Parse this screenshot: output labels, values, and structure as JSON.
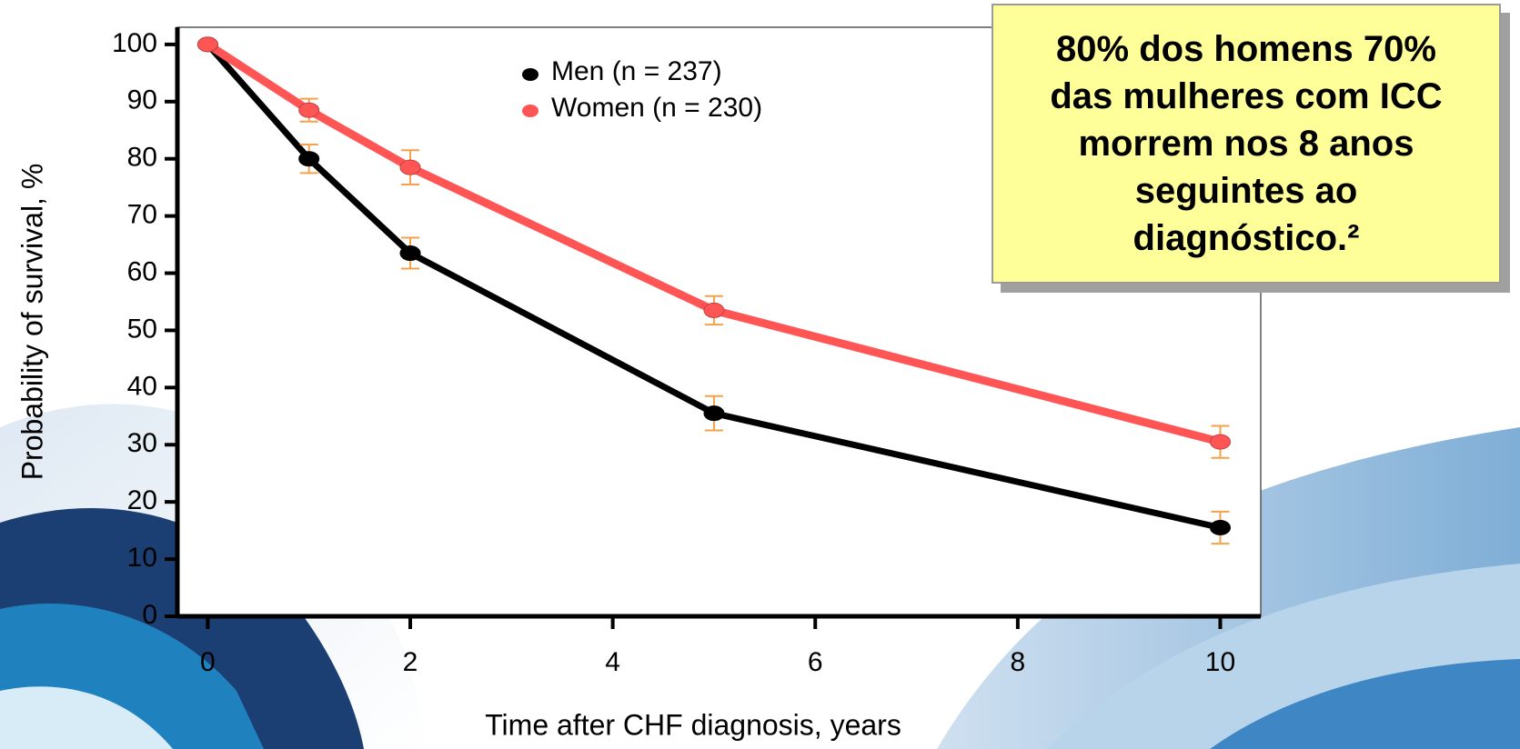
{
  "chart_data": {
    "type": "line",
    "x_label": "Time after CHF diagnosis, years",
    "y_label": "Probability of survival, %",
    "annotation": "80% dos homens 70% das mulheres com ICC morrem nos 8 anos seguintes ao diagnóstico.²",
    "x": [
      0,
      1,
      2,
      5,
      10
    ],
    "series": [
      {
        "name": "Men (n = 237)",
        "color": "#000000",
        "values": [
          100,
          80,
          63.5,
          35.5,
          15.5
        ],
        "errors": [
          0,
          2.5,
          2.7,
          3.0,
          2.8
        ]
      },
      {
        "name": "Women (n = 230)",
        "color": "#ff5555",
        "values": [
          100,
          88.5,
          78.5,
          53.5,
          30.5
        ],
        "errors": [
          0,
          2.0,
          3.0,
          2.5,
          2.8
        ]
      }
    ],
    "error_color": "#f5a04a",
    "xlim": [
      -0.3,
      10.4
    ],
    "xticks": [
      0,
      2,
      4,
      6,
      8,
      10
    ],
    "ylim": [
      0,
      103
    ],
    "yticks": [
      0,
      10,
      20,
      30,
      40,
      50,
      60,
      70,
      80,
      90,
      100
    ],
    "legend": "top"
  }
}
